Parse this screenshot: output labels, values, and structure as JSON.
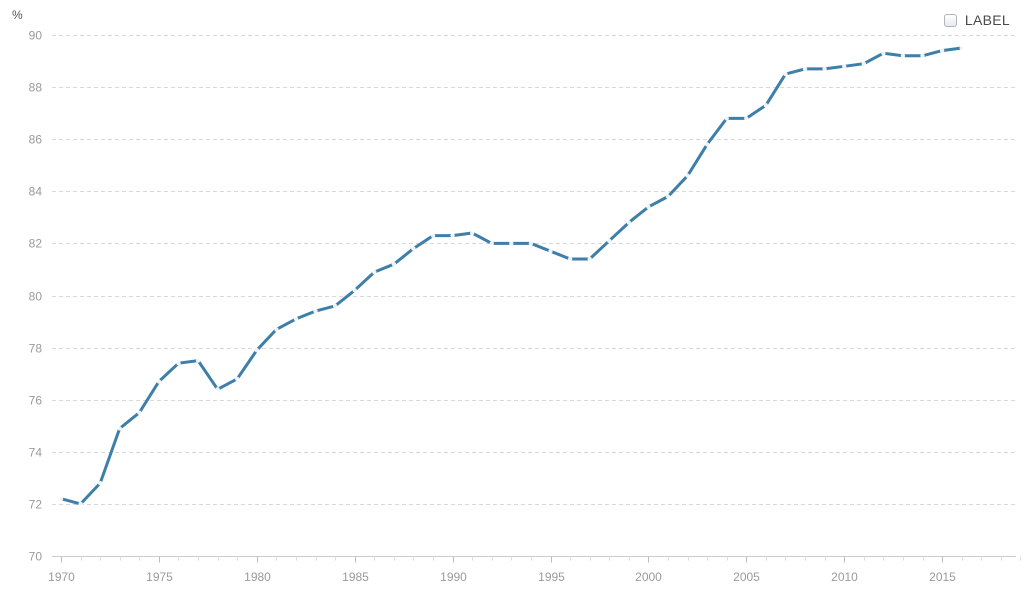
{
  "legend": {
    "label": "LABEL",
    "checked": false
  },
  "colors": {
    "series": "#3d7fa8",
    "grid": "#d9d9d9",
    "axis": "#cccccc",
    "tick_text": "#9a9a9a"
  },
  "chart_data": {
    "type": "line",
    "title": "",
    "xlabel": "",
    "ylabel": "%",
    "xlim": [
      1970,
      2019
    ],
    "ylim": [
      70,
      90
    ],
    "xticks": [
      1970,
      1975,
      1980,
      1985,
      1990,
      1995,
      2000,
      2005,
      2010,
      2015
    ],
    "yticks": [
      70,
      72,
      74,
      76,
      78,
      80,
      82,
      84,
      86,
      88,
      90
    ],
    "grid": true,
    "legend_position": "top-right",
    "series": [
      {
        "color": "#3d7fa8",
        "x": [
          1970,
          1971,
          1972,
          1973,
          1974,
          1975,
          1976,
          1977,
          1978,
          1979,
          1980,
          1981,
          1982,
          1983,
          1984,
          1985,
          1986,
          1987,
          1988,
          1989,
          1990,
          1991,
          1992,
          1993,
          1994,
          1995,
          1996,
          1997,
          1998,
          1999,
          2000,
          2001,
          2002,
          2003,
          2004,
          2005,
          2006,
          2007,
          2008,
          2009,
          2010,
          2011,
          2012,
          2013,
          2014,
          2015,
          2016
        ],
        "values": [
          72.2,
          72.0,
          72.8,
          74.9,
          75.5,
          76.7,
          77.4,
          77.5,
          76.4,
          76.8,
          77.9,
          78.7,
          79.1,
          79.4,
          79.6,
          80.2,
          80.9,
          81.2,
          81.8,
          82.3,
          82.3,
          82.4,
          82.0,
          82.0,
          82.0,
          81.7,
          81.4,
          81.4,
          82.1,
          82.8,
          83.4,
          83.8,
          84.6,
          85.8,
          86.8,
          86.8,
          87.3,
          88.5,
          88.7,
          88.7,
          88.8,
          88.9,
          89.3,
          89.2,
          89.2,
          89.4,
          89.5
        ]
      }
    ]
  }
}
